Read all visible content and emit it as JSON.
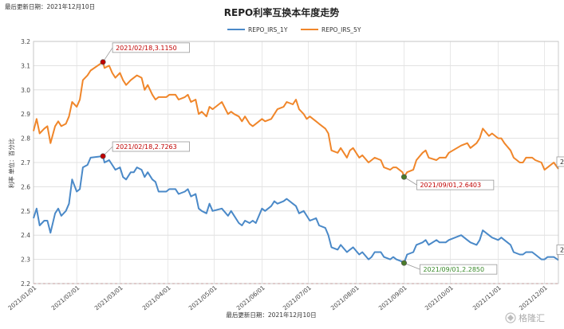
{
  "chart_data": {
    "type": "line",
    "title": "REPO利率互换本年度走势",
    "update_note": "最后更新日期：2021年12月10日",
    "ylabel": "利率 单位：百分比",
    "xlabel": "最后更新日期：2021年12月10日",
    "ylim": [
      2.2,
      3.2
    ],
    "yticks": [
      "2.2",
      "2.3",
      "2.4",
      "2.5",
      "2.6",
      "2.7",
      "2.8",
      "2.9",
      "3.0",
      "3.1",
      "3.2"
    ],
    "x_start": "2021/01/04",
    "x_end": "2021/12/10",
    "xticks": [
      "2021/01/01",
      "2021/02/01",
      "2021/03/01",
      "2021/04/01",
      "2021/05/01",
      "2021/06/01",
      "2021/07/01",
      "2021/08/01",
      "2021/09/01",
      "2021/10/01",
      "2021/11/01",
      "2021/12/01"
    ],
    "grid": true,
    "legend_position": "top-center",
    "series": [
      {
        "name": "REPO_IRS_1Y",
        "color": "#4a89c8",
        "points": [
          [
            "2021/01/04",
            2.47
          ],
          [
            "2021/01/06",
            2.51
          ],
          [
            "2021/01/08",
            2.44
          ],
          [
            "2021/01/11",
            2.46
          ],
          [
            "2021/01/13",
            2.46
          ],
          [
            "2021/01/15",
            2.41
          ],
          [
            "2021/01/18",
            2.49
          ],
          [
            "2021/01/20",
            2.51
          ],
          [
            "2021/01/22",
            2.48
          ],
          [
            "2021/01/25",
            2.5
          ],
          [
            "2021/01/27",
            2.53
          ],
          [
            "2021/01/29",
            2.63
          ],
          [
            "2021/02/01",
            2.58
          ],
          [
            "2021/02/03",
            2.59
          ],
          [
            "2021/02/05",
            2.68
          ],
          [
            "2021/02/08",
            2.69
          ],
          [
            "2021/02/10",
            2.72
          ],
          [
            "2021/02/18",
            2.7263
          ],
          [
            "2021/02/19",
            2.7
          ],
          [
            "2021/02/22",
            2.71
          ],
          [
            "2021/02/24",
            2.69
          ],
          [
            "2021/02/26",
            2.67
          ],
          [
            "2021/03/01",
            2.68
          ],
          [
            "2021/03/03",
            2.64
          ],
          [
            "2021/03/05",
            2.63
          ],
          [
            "2021/03/08",
            2.66
          ],
          [
            "2021/03/10",
            2.66
          ],
          [
            "2021/03/12",
            2.68
          ],
          [
            "2021/03/15",
            2.67
          ],
          [
            "2021/03/17",
            2.64
          ],
          [
            "2021/03/19",
            2.66
          ],
          [
            "2021/03/22",
            2.63
          ],
          [
            "2021/03/24",
            2.62
          ],
          [
            "2021/03/26",
            2.58
          ],
          [
            "2021/03/29",
            2.58
          ],
          [
            "2021/03/31",
            2.58
          ],
          [
            "2021/04/02",
            2.59
          ],
          [
            "2021/04/06",
            2.59
          ],
          [
            "2021/04/08",
            2.57
          ],
          [
            "2021/04/12",
            2.58
          ],
          [
            "2021/04/14",
            2.59
          ],
          [
            "2021/04/16",
            2.56
          ],
          [
            "2021/04/19",
            2.57
          ],
          [
            "2021/04/21",
            2.51
          ],
          [
            "2021/04/23",
            2.5
          ],
          [
            "2021/04/26",
            2.49
          ],
          [
            "2021/04/28",
            2.53
          ],
          [
            "2021/04/30",
            2.5
          ],
          [
            "2021/05/06",
            2.51
          ],
          [
            "2021/05/10",
            2.48
          ],
          [
            "2021/05/12",
            2.5
          ],
          [
            "2021/05/14",
            2.48
          ],
          [
            "2021/05/17",
            2.45
          ],
          [
            "2021/05/19",
            2.44
          ],
          [
            "2021/05/21",
            2.46
          ],
          [
            "2021/05/24",
            2.45
          ],
          [
            "2021/05/26",
            2.46
          ],
          [
            "2021/05/28",
            2.45
          ],
          [
            "2021/06/01",
            2.51
          ],
          [
            "2021/06/03",
            2.5
          ],
          [
            "2021/06/07",
            2.52
          ],
          [
            "2021/06/09",
            2.54
          ],
          [
            "2021/06/11",
            2.53
          ],
          [
            "2021/06/15",
            2.54
          ],
          [
            "2021/06/17",
            2.55
          ],
          [
            "2021/06/21",
            2.53
          ],
          [
            "2021/06/23",
            2.52
          ],
          [
            "2021/06/25",
            2.49
          ],
          [
            "2021/06/28",
            2.5
          ],
          [
            "2021/06/30",
            2.48
          ],
          [
            "2021/07/02",
            2.46
          ],
          [
            "2021/07/06",
            2.47
          ],
          [
            "2021/07/08",
            2.44
          ],
          [
            "2021/07/12",
            2.43
          ],
          [
            "2021/07/14",
            2.4
          ],
          [
            "2021/07/16",
            2.35
          ],
          [
            "2021/07/20",
            2.34
          ],
          [
            "2021/07/22",
            2.36
          ],
          [
            "2021/07/26",
            2.33
          ],
          [
            "2021/07/28",
            2.34
          ],
          [
            "2021/07/30",
            2.35
          ],
          [
            "2021/08/03",
            2.32
          ],
          [
            "2021/08/05",
            2.33
          ],
          [
            "2021/08/09",
            2.3
          ],
          [
            "2021/08/11",
            2.31
          ],
          [
            "2021/08/13",
            2.33
          ],
          [
            "2021/08/17",
            2.33
          ],
          [
            "2021/08/19",
            2.31
          ],
          [
            "2021/08/23",
            2.3
          ],
          [
            "2021/08/25",
            2.31
          ],
          [
            "2021/08/27",
            2.3
          ],
          [
            "2021/08/31",
            2.29
          ],
          [
            "2021/09/01",
            2.285
          ],
          [
            "2021/09/03",
            2.32
          ],
          [
            "2021/09/07",
            2.33
          ],
          [
            "2021/09/09",
            2.36
          ],
          [
            "2021/09/13",
            2.37
          ],
          [
            "2021/09/15",
            2.38
          ],
          [
            "2021/09/17",
            2.36
          ],
          [
            "2021/09/22",
            2.38
          ],
          [
            "2021/09/24",
            2.37
          ],
          [
            "2021/09/28",
            2.37
          ],
          [
            "2021/09/30",
            2.38
          ],
          [
            "2021/10/08",
            2.4
          ],
          [
            "2021/10/12",
            2.38
          ],
          [
            "2021/10/14",
            2.37
          ],
          [
            "2021/10/18",
            2.36
          ],
          [
            "2021/10/20",
            2.38
          ],
          [
            "2021/10/22",
            2.42
          ],
          [
            "2021/10/26",
            2.4
          ],
          [
            "2021/10/28",
            2.39
          ],
          [
            "2021/11/01",
            2.38
          ],
          [
            "2021/11/03",
            2.39
          ],
          [
            "2021/11/05",
            2.38
          ],
          [
            "2021/11/09",
            2.36
          ],
          [
            "2021/11/11",
            2.33
          ],
          [
            "2021/11/15",
            2.32
          ],
          [
            "2021/11/17",
            2.32
          ],
          [
            "2021/11/19",
            2.33
          ],
          [
            "2021/11/23",
            2.33
          ],
          [
            "2021/11/25",
            2.32
          ],
          [
            "2021/11/29",
            2.3
          ],
          [
            "2021/12/01",
            2.3
          ],
          [
            "2021/12/03",
            2.31
          ],
          [
            "2021/12/07",
            2.31
          ],
          [
            "2021/12/10",
            2.2975
          ]
        ]
      },
      {
        "name": "REPO_IRS_5Y",
        "color": "#f0862a",
        "points": [
          [
            "2021/01/04",
            2.83
          ],
          [
            "2021/01/06",
            2.88
          ],
          [
            "2021/01/08",
            2.82
          ],
          [
            "2021/01/11",
            2.84
          ],
          [
            "2021/01/13",
            2.85
          ],
          [
            "2021/01/15",
            2.78
          ],
          [
            "2021/01/18",
            2.85
          ],
          [
            "2021/01/20",
            2.87
          ],
          [
            "2021/01/22",
            2.85
          ],
          [
            "2021/01/25",
            2.86
          ],
          [
            "2021/01/27",
            2.89
          ],
          [
            "2021/01/29",
            2.95
          ],
          [
            "2021/02/01",
            2.93
          ],
          [
            "2021/02/03",
            2.96
          ],
          [
            "2021/02/05",
            3.04
          ],
          [
            "2021/02/08",
            3.06
          ],
          [
            "2021/02/10",
            3.08
          ],
          [
            "2021/02/18",
            3.115
          ],
          [
            "2021/02/19",
            3.09
          ],
          [
            "2021/02/22",
            3.1
          ],
          [
            "2021/02/24",
            3.07
          ],
          [
            "2021/02/26",
            3.05
          ],
          [
            "2021/03/01",
            3.07
          ],
          [
            "2021/03/03",
            3.04
          ],
          [
            "2021/03/05",
            3.02
          ],
          [
            "2021/03/08",
            3.04
          ],
          [
            "2021/03/10",
            3.05
          ],
          [
            "2021/03/12",
            3.06
          ],
          [
            "2021/03/15",
            3.05
          ],
          [
            "2021/03/17",
            3.0
          ],
          [
            "2021/03/19",
            3.02
          ],
          [
            "2021/03/22",
            2.98
          ],
          [
            "2021/03/24",
            2.96
          ],
          [
            "2021/03/26",
            2.97
          ],
          [
            "2021/03/29",
            2.97
          ],
          [
            "2021/03/31",
            2.97
          ],
          [
            "2021/04/02",
            2.98
          ],
          [
            "2021/04/06",
            2.98
          ],
          [
            "2021/04/08",
            2.96
          ],
          [
            "2021/04/12",
            2.97
          ],
          [
            "2021/04/14",
            2.98
          ],
          [
            "2021/04/16",
            2.95
          ],
          [
            "2021/04/19",
            2.96
          ],
          [
            "2021/04/21",
            2.9
          ],
          [
            "2021/04/23",
            2.91
          ],
          [
            "2021/04/26",
            2.89
          ],
          [
            "2021/04/28",
            2.93
          ],
          [
            "2021/04/30",
            2.92
          ],
          [
            "2021/05/06",
            2.95
          ],
          [
            "2021/05/10",
            2.9
          ],
          [
            "2021/05/12",
            2.91
          ],
          [
            "2021/05/14",
            2.9
          ],
          [
            "2021/05/17",
            2.89
          ],
          [
            "2021/05/19",
            2.87
          ],
          [
            "2021/05/21",
            2.89
          ],
          [
            "2021/05/24",
            2.86
          ],
          [
            "2021/05/26",
            2.85
          ],
          [
            "2021/05/28",
            2.86
          ],
          [
            "2021/06/01",
            2.88
          ],
          [
            "2021/06/03",
            2.87
          ],
          [
            "2021/06/07",
            2.88
          ],
          [
            "2021/06/09",
            2.9
          ],
          [
            "2021/06/11",
            2.92
          ],
          [
            "2021/06/15",
            2.93
          ],
          [
            "2021/06/17",
            2.95
          ],
          [
            "2021/06/21",
            2.94
          ],
          [
            "2021/06/23",
            2.96
          ],
          [
            "2021/06/25",
            2.92
          ],
          [
            "2021/06/28",
            2.9
          ],
          [
            "2021/06/30",
            2.88
          ],
          [
            "2021/07/02",
            2.89
          ],
          [
            "2021/07/06",
            2.87
          ],
          [
            "2021/07/08",
            2.86
          ],
          [
            "2021/07/12",
            2.84
          ],
          [
            "2021/07/14",
            2.82
          ],
          [
            "2021/07/16",
            2.75
          ],
          [
            "2021/07/20",
            2.74
          ],
          [
            "2021/07/22",
            2.76
          ],
          [
            "2021/07/26",
            2.72
          ],
          [
            "2021/07/28",
            2.75
          ],
          [
            "2021/07/30",
            2.76
          ],
          [
            "2021/08/03",
            2.72
          ],
          [
            "2021/08/05",
            2.73
          ],
          [
            "2021/08/09",
            2.7
          ],
          [
            "2021/08/11",
            2.71
          ],
          [
            "2021/08/13",
            2.72
          ],
          [
            "2021/08/17",
            2.71
          ],
          [
            "2021/08/19",
            2.68
          ],
          [
            "2021/08/23",
            2.67
          ],
          [
            "2021/08/25",
            2.68
          ],
          [
            "2021/08/27",
            2.68
          ],
          [
            "2021/08/31",
            2.66
          ],
          [
            "2021/09/01",
            2.6403
          ],
          [
            "2021/09/03",
            2.66
          ],
          [
            "2021/09/07",
            2.67
          ],
          [
            "2021/09/09",
            2.71
          ],
          [
            "2021/09/13",
            2.74
          ],
          [
            "2021/09/15",
            2.75
          ],
          [
            "2021/09/17",
            2.72
          ],
          [
            "2021/09/22",
            2.71
          ],
          [
            "2021/09/24",
            2.72
          ],
          [
            "2021/09/28",
            2.72
          ],
          [
            "2021/09/30",
            2.74
          ],
          [
            "2021/10/08",
            2.77
          ],
          [
            "2021/10/12",
            2.78
          ],
          [
            "2021/10/14",
            2.76
          ],
          [
            "2021/10/18",
            2.78
          ],
          [
            "2021/10/20",
            2.8
          ],
          [
            "2021/10/22",
            2.84
          ],
          [
            "2021/10/26",
            2.81
          ],
          [
            "2021/10/28",
            2.82
          ],
          [
            "2021/11/01",
            2.8
          ],
          [
            "2021/11/03",
            2.8
          ],
          [
            "2021/11/05",
            2.78
          ],
          [
            "2021/11/09",
            2.75
          ],
          [
            "2021/11/11",
            2.72
          ],
          [
            "2021/11/15",
            2.7
          ],
          [
            "2021/11/17",
            2.7
          ],
          [
            "2021/11/19",
            2.72
          ],
          [
            "2021/11/23",
            2.72
          ],
          [
            "2021/11/25",
            2.71
          ],
          [
            "2021/11/29",
            2.7
          ],
          [
            "2021/12/01",
            2.67
          ],
          [
            "2021/12/03",
            2.68
          ],
          [
            "2021/12/07",
            2.7
          ],
          [
            "2021/12/10",
            2.6738
          ]
        ]
      }
    ],
    "annotations": [
      {
        "text": "2021/02/18,3.1150",
        "date": "2021/02/18",
        "value": 3.115,
        "color": "#c00000",
        "marker": "#c00000"
      },
      {
        "text": "2021/02/18,2.7263",
        "date": "2021/02/18",
        "value": 2.7263,
        "color": "#c00000",
        "marker": "#c00000"
      },
      {
        "text": "2021/09/01,2.6403",
        "date": "2021/09/01",
        "value": 2.6403,
        "color": "#c00000",
        "marker": "#4a7a2a"
      },
      {
        "text": "2021/09/01,2.2850",
        "date": "2021/09/01",
        "value": 2.285,
        "color": "#3a8a2a",
        "marker": "#4a7a2a"
      },
      {
        "text": "2.6738",
        "date": "2021/12/10",
        "value": 2.6738,
        "color": "#222222",
        "marker": null
      },
      {
        "text": "2.2975",
        "date": "2021/12/10",
        "value": 2.2975,
        "color": "#222222",
        "marker": null
      }
    ],
    "watermark": "格隆汇"
  }
}
